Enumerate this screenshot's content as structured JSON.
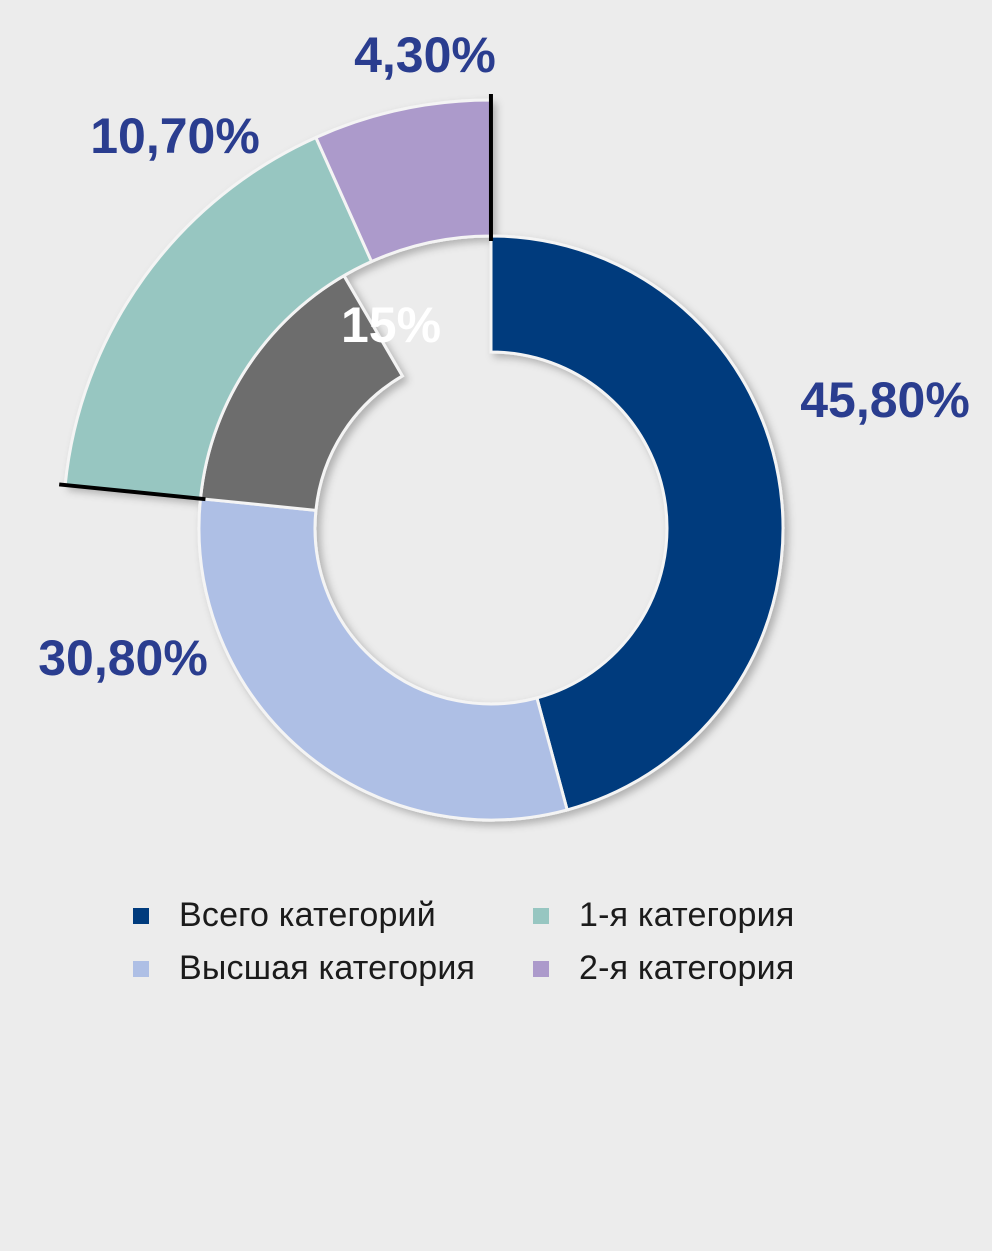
{
  "chart_data": {
    "type": "pie",
    "title": "",
    "outer_ring": [
      {
        "name": "Всего категорий",
        "value": 45.8,
        "label": "45,80%",
        "color": "#003b7d"
      },
      {
        "name": "Высшая категория",
        "value": 30.8,
        "label": "30,80%",
        "color": "#aebfe5"
      },
      {
        "name": "",
        "value": 15,
        "label": "15%",
        "color": "#6d6d6d"
      }
    ],
    "breakout": [
      {
        "name": "1-я категория",
        "value": 10.7,
        "label": "10,70%",
        "color": "#97c6c1"
      },
      {
        "name": "2-я категория",
        "value": 4.3,
        "label": "4,30%",
        "color": "#ac9acb"
      }
    ],
    "label_color": "#2a3d8f",
    "inner_label_color": "#ffffff"
  },
  "legend": [
    {
      "label": "Всего категорий",
      "color": "#003b7d"
    },
    {
      "label": "1-я категория",
      "color": "#97c6c1"
    },
    {
      "label": "Высшая категория",
      "color": "#aebfe5"
    },
    {
      "label": "2-я категория",
      "color": "#ac9acb"
    }
  ]
}
